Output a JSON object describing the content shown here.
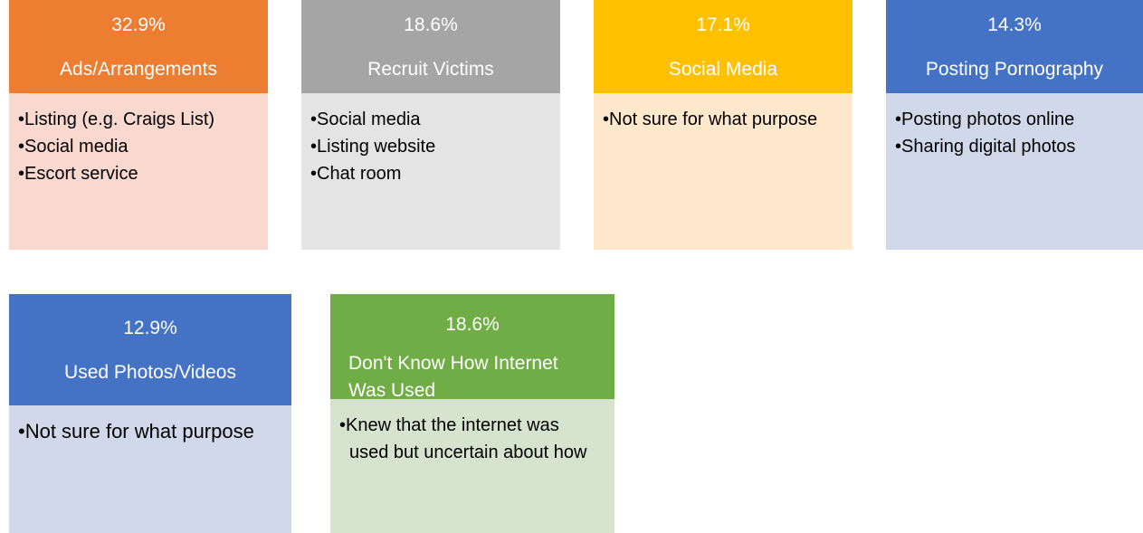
{
  "cards": [
    {
      "percent": "32.9%",
      "label": "Ads/Arrangements",
      "bullets": [
        "Listing (e.g. Craigs List)",
        "Social media",
        "Escort service"
      ]
    },
    {
      "percent": "18.6%",
      "label": "Recruit Victims",
      "bullets": [
        "Social media",
        "Listing website",
        "Chat room"
      ]
    },
    {
      "percent": "17.1%",
      "label": "Social Media",
      "bullets": [
        "Not sure for what purpose"
      ]
    },
    {
      "percent": "14.3%",
      "label": "Posting Pornography",
      "bullets": [
        "Posting photos online",
        "Sharing digital photos"
      ]
    },
    {
      "percent": "12.9%",
      "label": "Used Photos/Videos",
      "bullets": [
        "Not sure for what purpose"
      ]
    },
    {
      "percent": "18.6%",
      "label": "Don't Know How Internet Was Used",
      "bullets": [
        "Knew that the internet was used but uncertain about how"
      ]
    }
  ]
}
